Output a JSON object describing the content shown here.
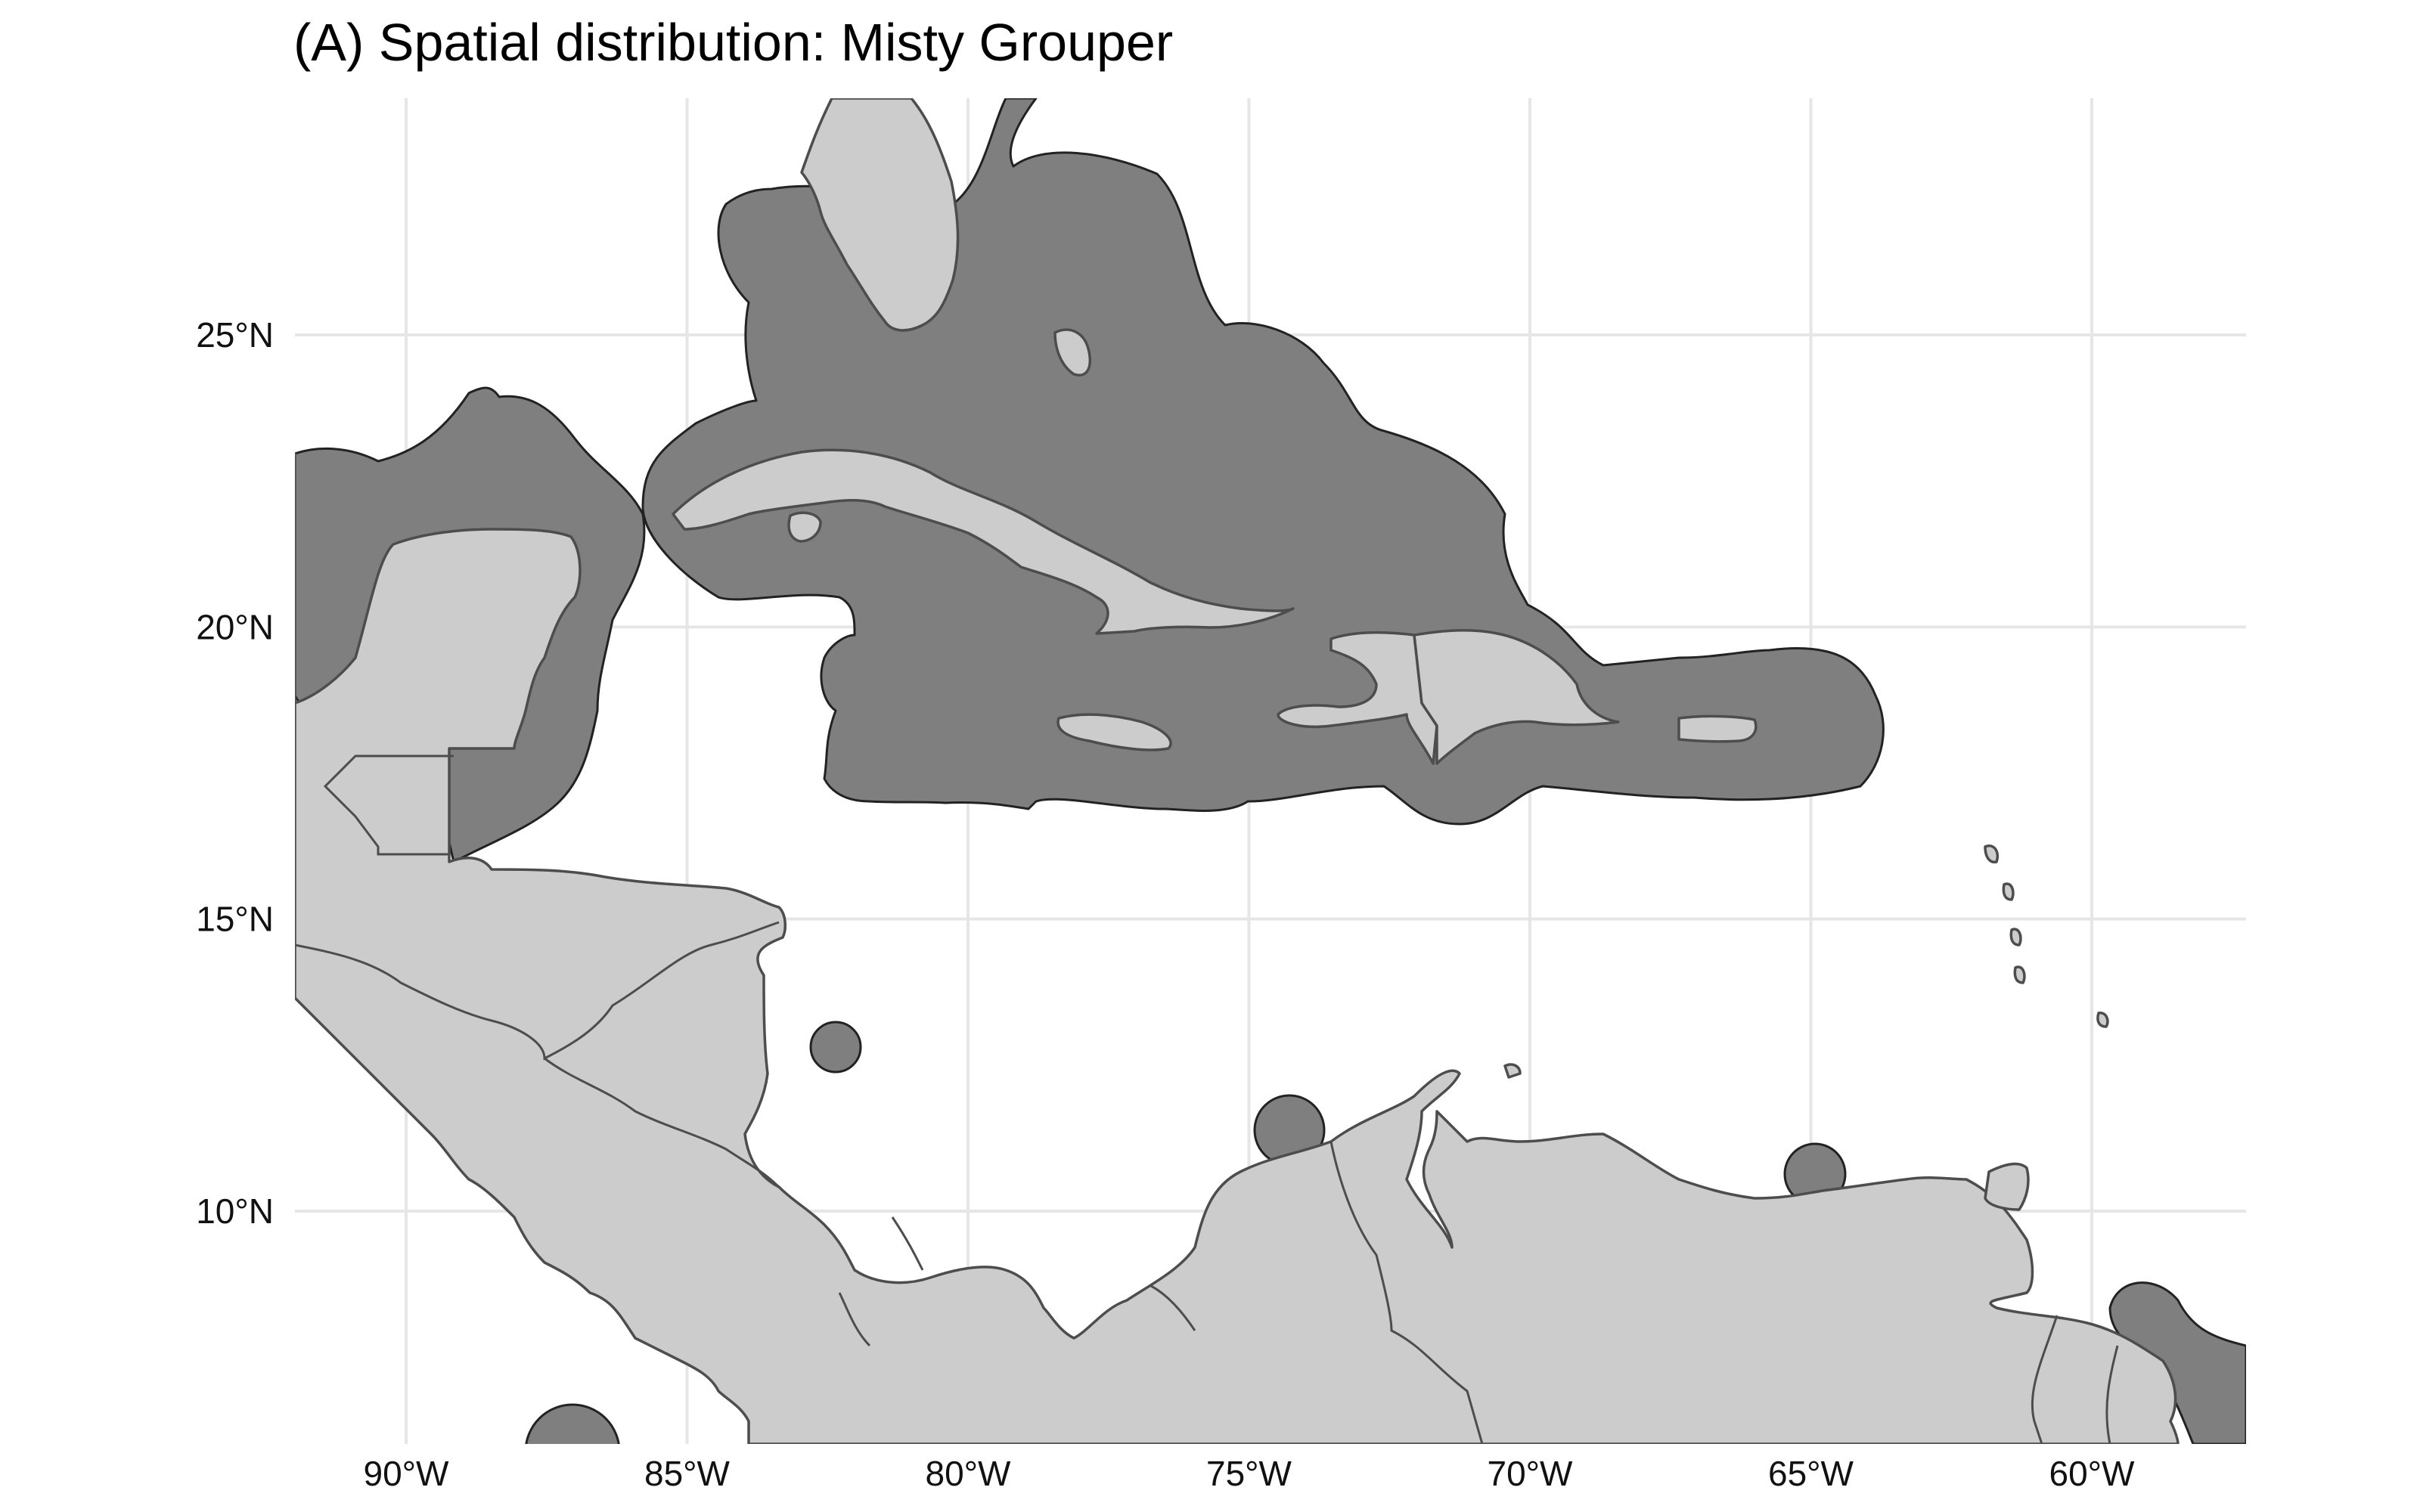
{
  "title": "(A) Spatial distribution: Misty Grouper",
  "axes": {
    "x_ticks": [
      "90°W",
      "85°W",
      "80°W",
      "75°W",
      "70°W",
      "65°W",
      "60°W"
    ],
    "y_ticks": [
      "25°N",
      "20°N",
      "15°N",
      "10°N"
    ],
    "lon_values": [
      -90,
      -85,
      -80,
      -75,
      -70,
      -65,
      -60
    ],
    "lat_values": [
      25,
      20,
      15,
      10
    ],
    "lon_range": [
      -92,
      -57
    ],
    "lat_range": [
      6,
      29
    ],
    "grid": true
  },
  "colors": {
    "background": "#ffffff",
    "grid": "#e6e6e6",
    "land_fill": "#cccccc",
    "land_border": "#4d4d4d",
    "distribution_fill": "#7f7f7f",
    "distribution_border": "#222222"
  }
}
